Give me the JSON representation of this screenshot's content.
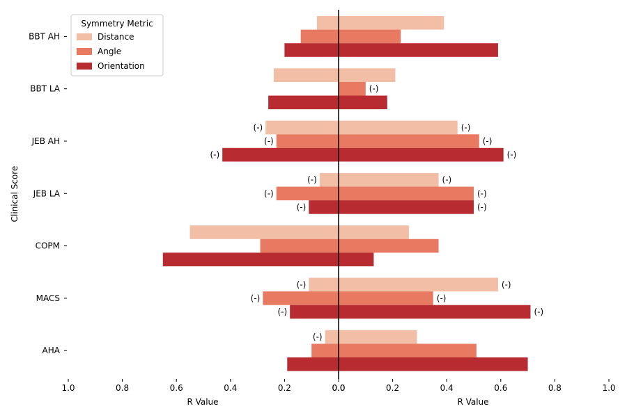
{
  "chart_data": {
    "type": "bar",
    "orientation": "horizontal",
    "layout": "mirrored",
    "categories": [
      "BBT AH",
      "BBT LA",
      "JEB AH",
      "JEB LA",
      "COPM",
      "MACS",
      "AHA"
    ],
    "ylabel": "Clinical Score",
    "xlabel_left": "R Value",
    "xlabel_right": "R Value",
    "xlim": [
      0,
      1.0
    ],
    "xticks": [
      "1.0",
      "0.8",
      "0.6",
      "0.4",
      "0.2",
      "0.0",
      "0.0",
      "0.2",
      "0.4",
      "0.6",
      "0.8",
      "1.0"
    ],
    "legend": {
      "title": "Symmetry Metric",
      "position": "top-left"
    },
    "negative_marker": "(-)",
    "series": [
      {
        "name": "Distance",
        "color": "#f2bea6",
        "left": [
          0.08,
          0.24,
          0.27,
          0.07,
          0.55,
          0.11,
          0.05
        ],
        "right": [
          0.39,
          0.21,
          0.44,
          0.37,
          0.26,
          0.59,
          0.29
        ],
        "left_negative": [
          false,
          false,
          true,
          true,
          false,
          true,
          true
        ],
        "right_negative": [
          false,
          false,
          true,
          true,
          false,
          true,
          false
        ]
      },
      {
        "name": "Angle",
        "color": "#e87a62",
        "left": [
          0.14,
          0.0,
          0.23,
          0.23,
          0.29,
          0.28,
          0.1
        ],
        "right": [
          0.23,
          0.1,
          0.52,
          0.5,
          0.37,
          0.35,
          0.51
        ],
        "left_negative": [
          false,
          false,
          true,
          true,
          false,
          true,
          false
        ],
        "right_negative": [
          false,
          true,
          true,
          true,
          false,
          true,
          false
        ]
      },
      {
        "name": "Orientation",
        "color": "#b82c31",
        "left": [
          0.2,
          0.26,
          0.43,
          0.11,
          0.65,
          0.18,
          0.19
        ],
        "right": [
          0.59,
          0.18,
          0.61,
          0.5,
          0.13,
          0.71,
          0.7
        ],
        "left_negative": [
          false,
          false,
          true,
          true,
          false,
          true,
          false
        ],
        "right_negative": [
          false,
          false,
          true,
          true,
          false,
          true,
          false
        ]
      }
    ]
  }
}
